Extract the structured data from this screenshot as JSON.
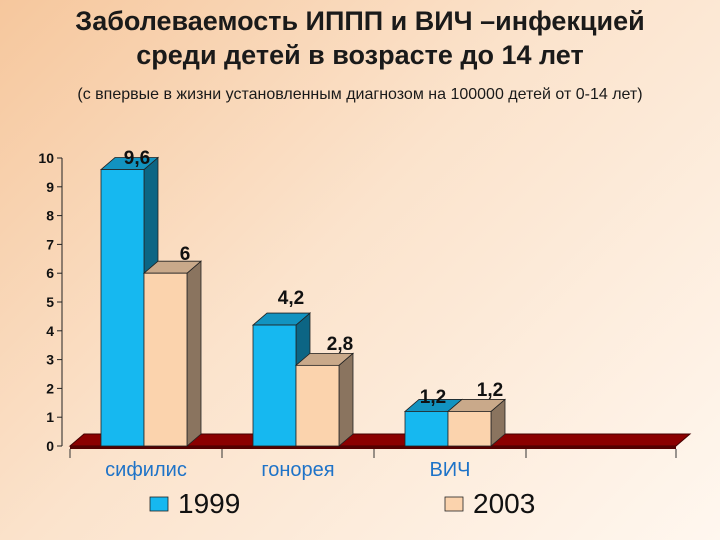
{
  "title_line1": "Заболеваемость ИППП и ВИЧ –инфекцией",
  "title_line2": "среди детей в возрасте до 14 лет",
  "subtitle": "(с впервые в жизни установленным диагнозом на 100000 детей от 0-14 лет)",
  "colors": {
    "series1999": "#16b8f0",
    "series2003": "#fbd3ad",
    "floor": "#8b0000"
  },
  "chart_data": {
    "type": "bar",
    "categories": [
      "сифилис",
      "гонорея",
      "ВИЧ"
    ],
    "series": [
      {
        "name": "1999",
        "values": [
          9.6,
          4.2,
          1.2
        ],
        "labels": [
          "9,6",
          "4,2",
          "1,2"
        ]
      },
      {
        "name": "2003",
        "values": [
          6,
          2.8,
          1.2
        ],
        "labels": [
          "6",
          "2,8",
          "1,2"
        ]
      }
    ],
    "yticks": [
      "0",
      "1",
      "2",
      "3",
      "4",
      "5",
      "6",
      "7",
      "8",
      "9",
      "10"
    ],
    "ylim": [
      0,
      10
    ],
    "grid": false,
    "legend": "bottom",
    "style": "3d"
  }
}
